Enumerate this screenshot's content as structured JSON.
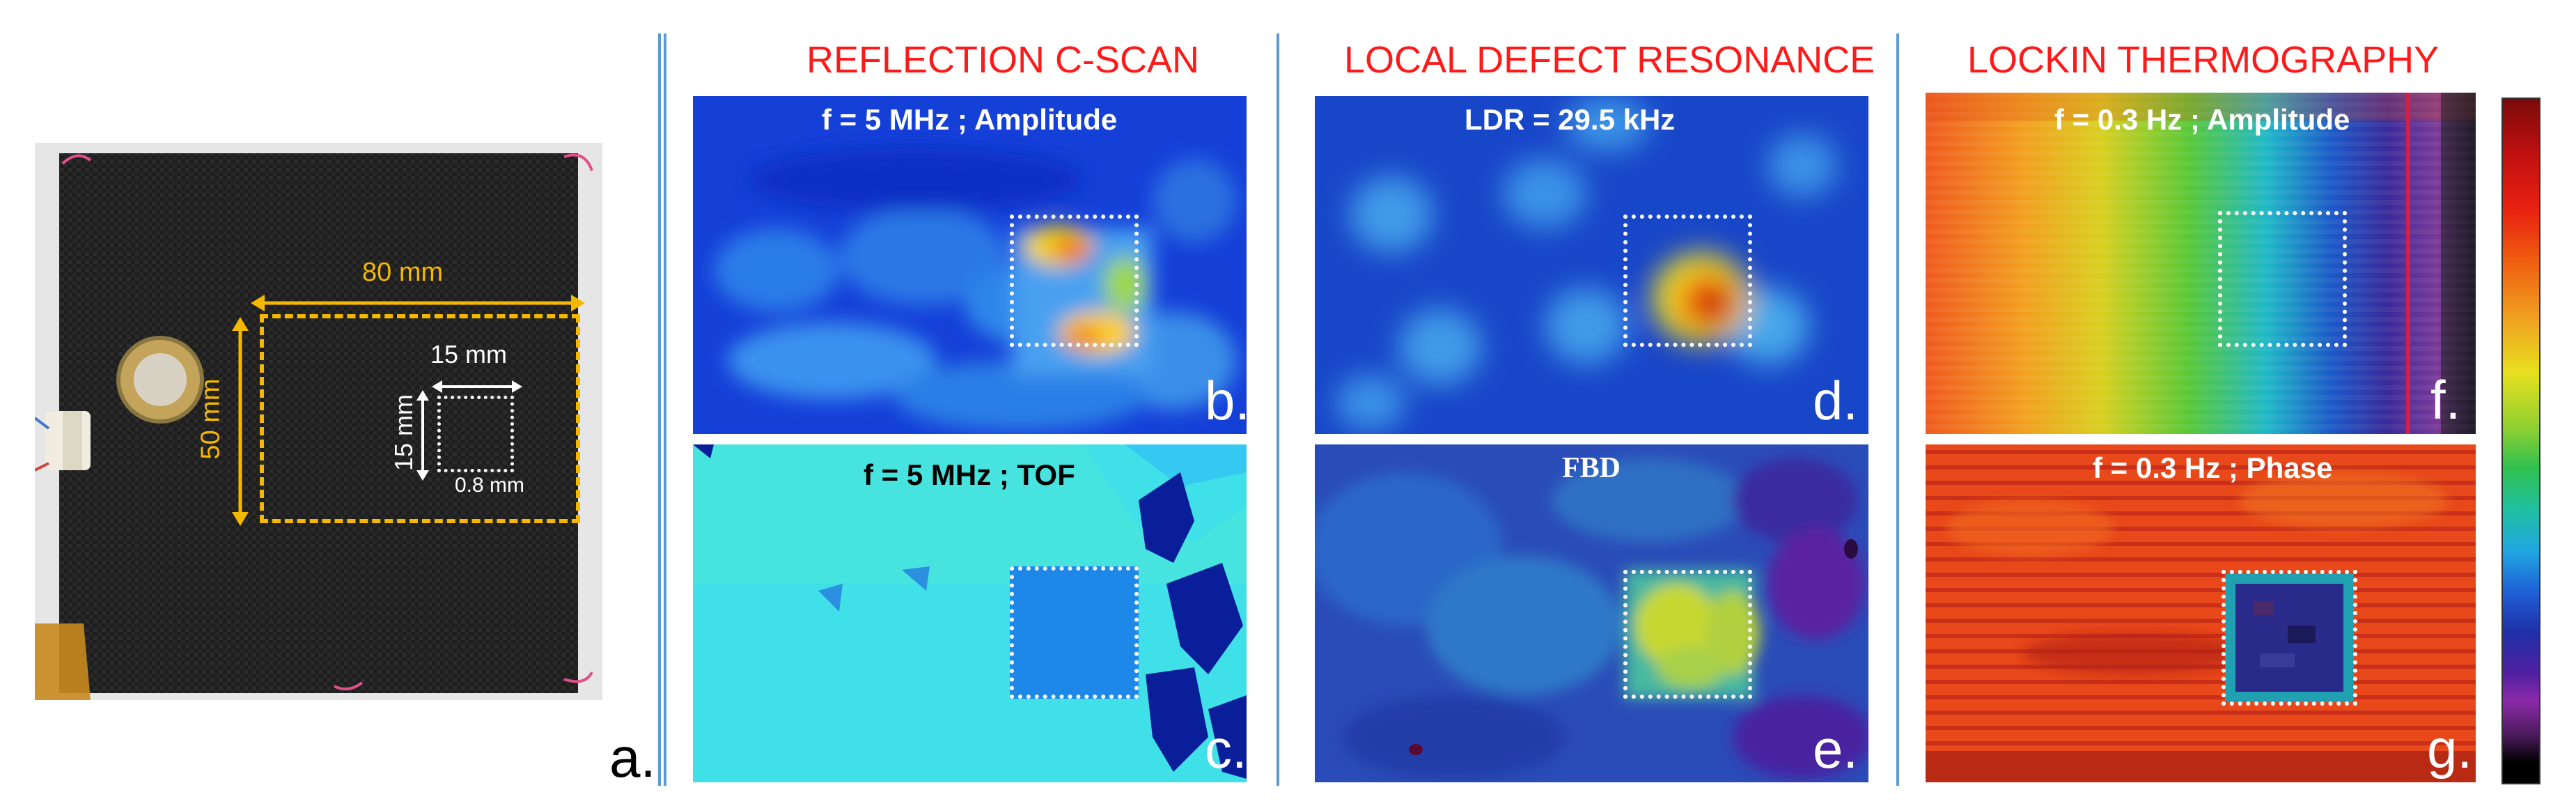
{
  "sections": {
    "reflection": "REFLECTION C-SCAN",
    "ldr": "LOCAL DEFECT RESONANCE",
    "lockin": "LOCKIN THERMOGRAPHY"
  },
  "photo": {
    "dim_width": "80 mm",
    "dim_height": "50 mm",
    "defect_width": "15 mm",
    "defect_height": "15 mm",
    "defect_depth": "0.8 mm",
    "label": "a."
  },
  "panels": {
    "b": {
      "caption": "f = 5 MHz ; Amplitude",
      "label": "b."
    },
    "c": {
      "caption": "f = 5 MHz ; TOF",
      "label": "c."
    },
    "d": {
      "caption": "LDR = 29.5 kHz",
      "label": "d."
    },
    "e": {
      "caption": "FBD",
      "label": "e."
    },
    "f": {
      "caption": "f = 0.3 Hz ; Amplitude",
      "label": "f."
    },
    "g": {
      "caption": "f = 0.3 Hz ; Phase",
      "label": "g."
    }
  },
  "colors": {
    "title_red": "#ff1a1a",
    "divider_blue": "#5b9bd5",
    "dimension_orange": "#f5b800"
  }
}
